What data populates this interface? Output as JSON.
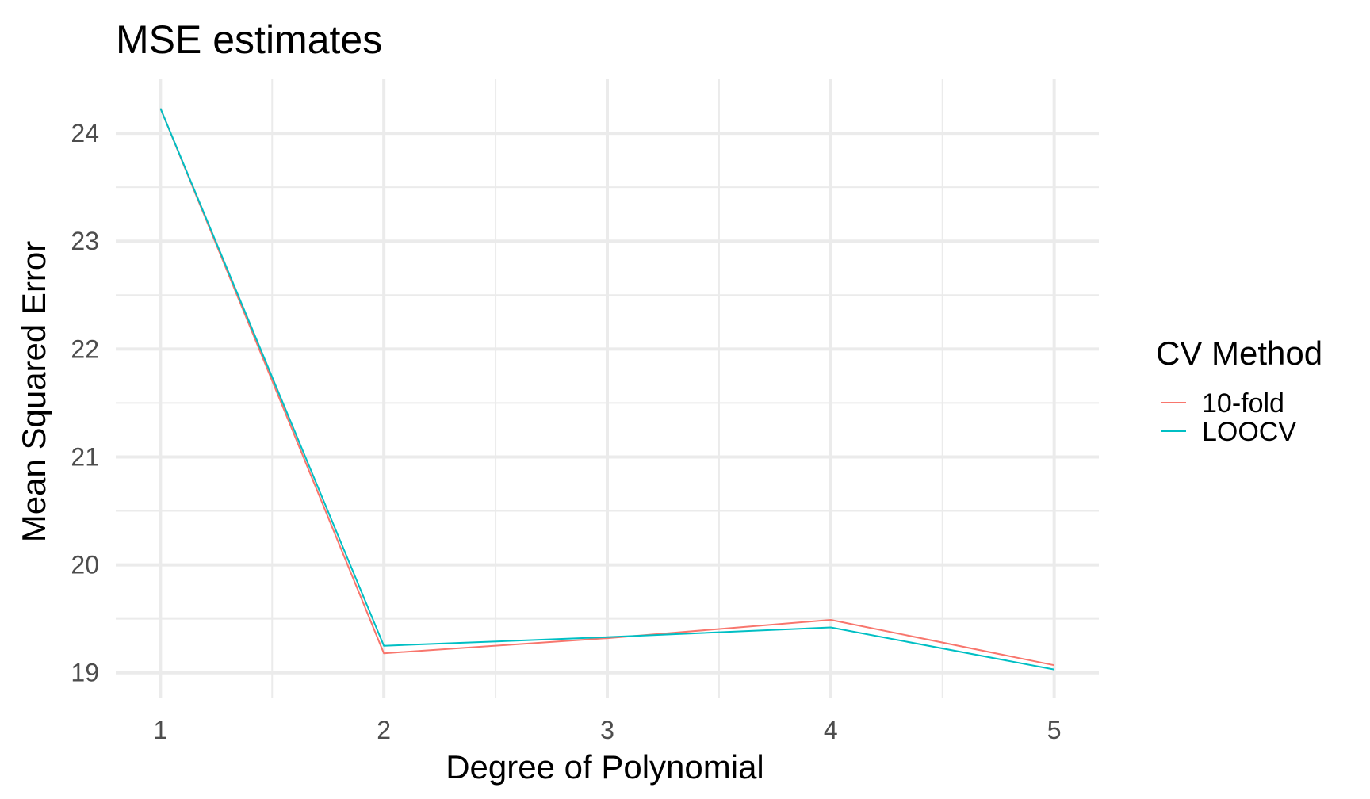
{
  "chart_data": {
    "type": "line",
    "title": "MSE estimates",
    "xlabel": "Degree of Polynomial",
    "ylabel": "Mean Squared Error",
    "x": [
      1,
      2,
      3,
      4,
      5
    ],
    "x_ticks": [
      "1",
      "2",
      "3",
      "4",
      "5"
    ],
    "y_ticks": [
      "19",
      "20",
      "21",
      "22",
      "23",
      "24"
    ],
    "xlim": [
      0.8,
      5.2
    ],
    "ylim": [
      18.77,
      24.5
    ],
    "grid": true,
    "legend": {
      "title": "CV Method",
      "placement": "right"
    },
    "series": [
      {
        "name": "10-fold",
        "color": "#F8766D",
        "values": [
          24.23,
          19.18,
          19.32,
          19.49,
          19.07
        ]
      },
      {
        "name": "LOOCV",
        "color": "#00BFC4",
        "values": [
          24.23,
          19.25,
          19.33,
          19.42,
          19.03
        ]
      }
    ]
  }
}
